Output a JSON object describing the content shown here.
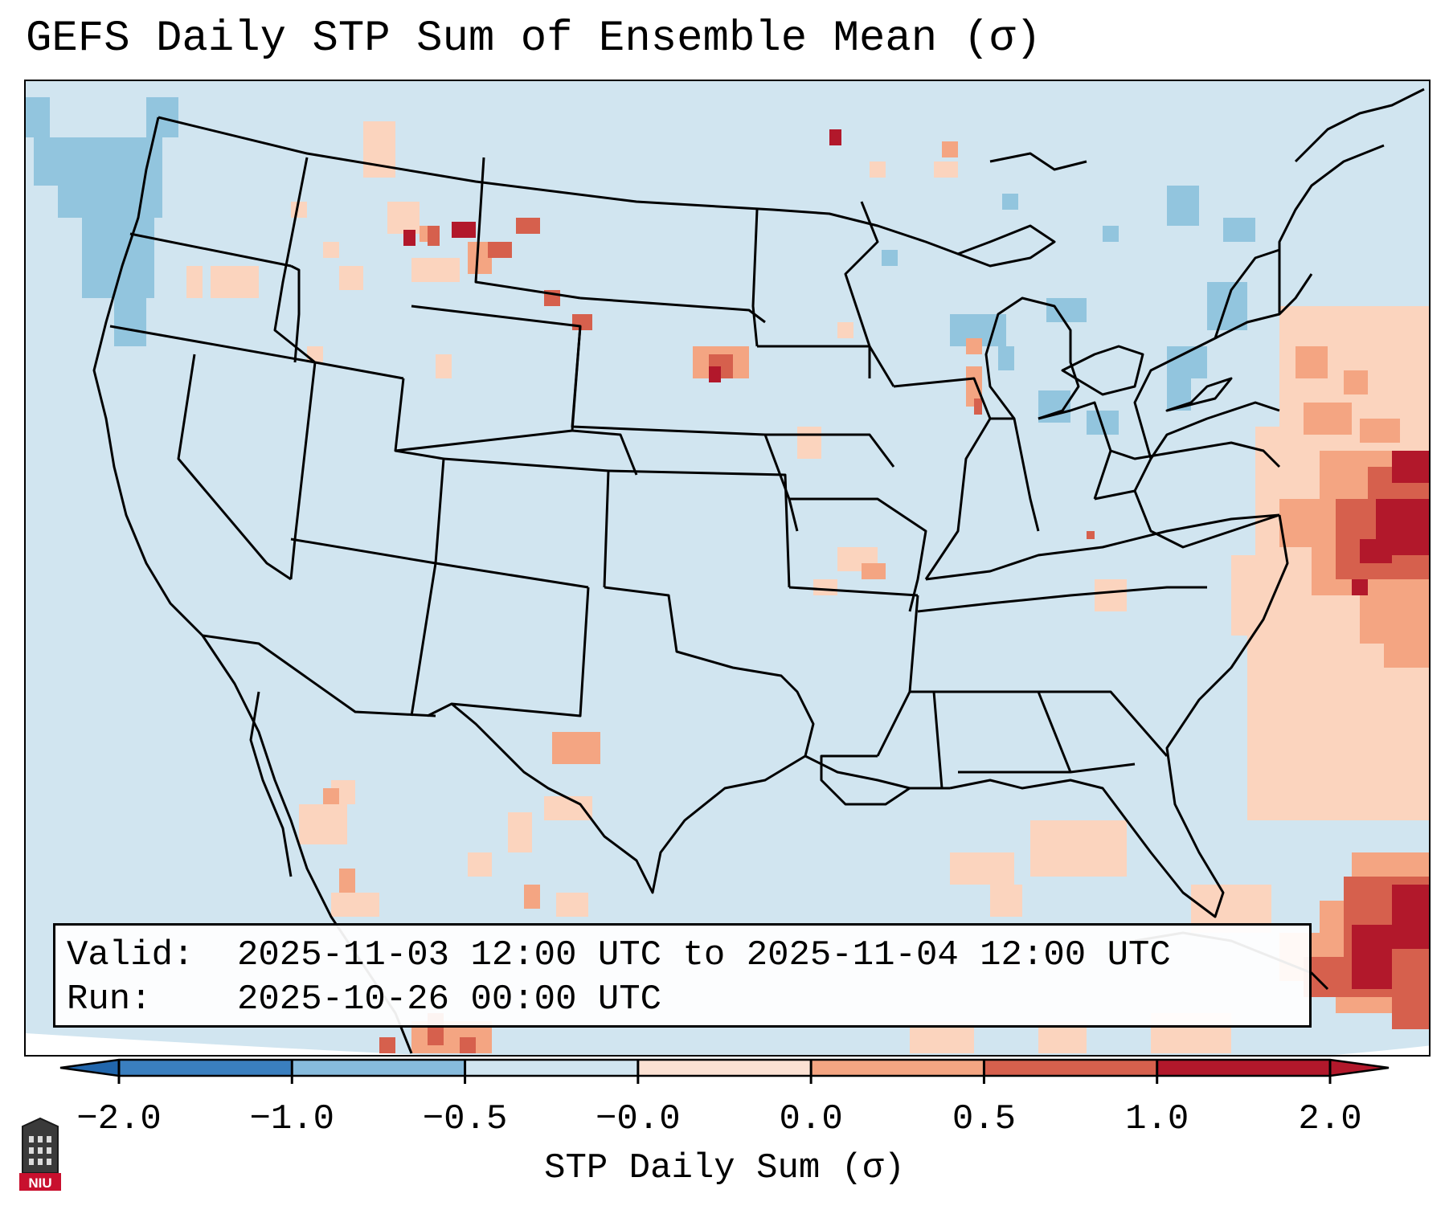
{
  "title": "GEFS Daily STP Sum of Ensemble Mean (σ)",
  "info": {
    "valid_label": "Valid:",
    "valid_value": "2025-11-03 12:00 UTC to 2025-11-04 12:00 UTC",
    "run_label": "Run:",
    "run_value": "2025-10-26 00:00 UTC"
  },
  "colorbar": {
    "label": "STP Daily Sum (σ)",
    "ticks": [
      "−2.0",
      "−1.0",
      "−0.5",
      "−0.0",
      "0.0",
      "0.5",
      "1.0",
      "2.0"
    ],
    "colors": [
      "#3a7fbf",
      "#87bbdc",
      "#d1e5f0",
      "#fbe1d3",
      "#f4a582",
      "#d6604d",
      "#b2182b"
    ],
    "under_color": "#2166ac",
    "over_color": "#b2182b"
  },
  "map": {
    "background": "#d1e5f0",
    "region": "Contiguous United States, southern Canada, northern Mexico, western Atlantic"
  },
  "logo": {
    "text": "NIU"
  }
}
